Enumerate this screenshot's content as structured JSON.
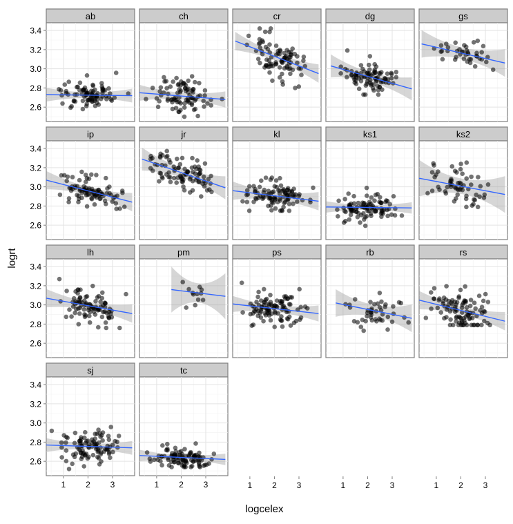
{
  "chart_data": {
    "type": "scatter",
    "title": "",
    "xlabel": "logcelex",
    "ylabel": "logrt",
    "xlim": [
      0.3,
      3.9
    ],
    "ylim": [
      2.45,
      3.48
    ],
    "x_ticks": [
      1,
      2,
      3
    ],
    "y_ticks": [
      2.6,
      2.8,
      3.0,
      3.2,
      3.4
    ],
    "x_tick_labels": [
      "1",
      "2",
      "3"
    ],
    "y_tick_labels": [
      "2.6",
      "2.8",
      "3.0",
      "3.2",
      "3.4"
    ],
    "grid": true,
    "legend": "none",
    "layout": {
      "ncol": 5,
      "nrow": 4
    },
    "panels": [
      {
        "name": "ab",
        "n": 90,
        "xr": [
          0.3,
          3.8
        ],
        "y0": 2.73,
        "y1": 2.72,
        "sd": 0.08,
        "yr": [
          2.58,
          3.02
        ],
        "fit": [
          0.3,
          3.8
        ],
        "band": 0.03
      },
      {
        "name": "ch",
        "n": 90,
        "xr": [
          0.3,
          3.8
        ],
        "y0": 2.75,
        "y1": 2.68,
        "sd": 0.09,
        "yr": [
          2.5,
          3.0
        ],
        "fit": [
          0.3,
          3.8
        ],
        "band": 0.035
      },
      {
        "name": "cr",
        "n": 90,
        "xr": [
          0.4,
          3.8
        ],
        "y0": 3.29,
        "y1": 2.95,
        "sd": 0.11,
        "yr": [
          2.8,
          3.42
        ],
        "fit": [
          0.4,
          3.8
        ],
        "band": 0.04
      },
      {
        "name": "dg",
        "n": 90,
        "xr": [
          0.5,
          3.8
        ],
        "y0": 3.03,
        "y1": 2.79,
        "sd": 0.1,
        "yr": [
          2.73,
          3.35
        ],
        "fit": [
          0.5,
          3.8
        ],
        "band": 0.05
      },
      {
        "name": "gs",
        "n": 40,
        "xr": [
          0.4,
          3.8
        ],
        "y0": 3.26,
        "y1": 3.06,
        "sd": 0.07,
        "yr": [
          2.97,
          3.4
        ],
        "fit": [
          0.4,
          3.8
        ],
        "band": 0.06
      },
      {
        "name": "ip",
        "n": 90,
        "xr": [
          0.3,
          3.8
        ],
        "y0": 3.07,
        "y1": 2.84,
        "sd": 0.08,
        "yr": [
          2.77,
          3.27
        ],
        "fit": [
          0.3,
          3.8
        ],
        "band": 0.04
      },
      {
        "name": "jr",
        "n": 90,
        "xr": [
          0.4,
          3.8
        ],
        "y0": 3.29,
        "y1": 2.99,
        "sd": 0.09,
        "yr": [
          2.9,
          3.43
        ],
        "fit": [
          0.4,
          3.8
        ],
        "band": 0.05
      },
      {
        "name": "kl",
        "n": 100,
        "xr": [
          0.3,
          3.8
        ],
        "y0": 2.96,
        "y1": 2.85,
        "sd": 0.09,
        "yr": [
          2.75,
          3.31
        ],
        "fit": [
          0.3,
          3.8
        ],
        "band": 0.04
      },
      {
        "name": "ks1",
        "n": 100,
        "xr": [
          0.3,
          3.8
        ],
        "y0": 2.79,
        "y1": 2.78,
        "sd": 0.07,
        "yr": [
          2.54,
          3.04
        ],
        "fit": [
          0.3,
          3.8
        ],
        "band": 0.025
      },
      {
        "name": "ks2",
        "n": 60,
        "xr": [
          0.3,
          3.8
        ],
        "y0": 3.09,
        "y1": 2.92,
        "sd": 0.14,
        "yr": [
          2.79,
          3.42
        ],
        "fit": [
          0.3,
          3.8
        ],
        "band": 0.08
      },
      {
        "name": "lh",
        "n": 90,
        "xr": [
          0.3,
          3.8
        ],
        "y0": 3.07,
        "y1": 2.91,
        "sd": 0.09,
        "yr": [
          2.76,
          3.27
        ],
        "fit": [
          0.3,
          3.8
        ],
        "band": 0.04
      },
      {
        "name": "pm",
        "n": 12,
        "xr": [
          1.6,
          3.8
        ],
        "y0": 3.16,
        "y1": 3.09,
        "sd": 0.09,
        "yr": [
          2.97,
          3.37
        ],
        "fit": [
          1.6,
          3.8
        ],
        "band": 0.1
      },
      {
        "name": "ps",
        "n": 100,
        "xr": [
          0.3,
          3.8
        ],
        "y0": 3.01,
        "y1": 2.91,
        "sd": 0.09,
        "yr": [
          2.75,
          3.34
        ],
        "fit": [
          0.3,
          3.8
        ],
        "band": 0.035
      },
      {
        "name": "rb",
        "n": 45,
        "xr": [
          0.7,
          3.8
        ],
        "y0": 3.02,
        "y1": 2.86,
        "sd": 0.09,
        "yr": [
          2.72,
          3.26
        ],
        "fit": [
          0.7,
          3.8
        ],
        "band": 0.06
      },
      {
        "name": "rs",
        "n": 100,
        "xr": [
          0.3,
          3.8
        ],
        "y0": 3.05,
        "y1": 2.83,
        "sd": 0.1,
        "yr": [
          2.79,
          3.4
        ],
        "fit": [
          0.3,
          3.8
        ],
        "band": 0.04
      },
      {
        "name": "sj",
        "n": 100,
        "xr": [
          0.3,
          3.8
        ],
        "y0": 2.77,
        "y1": 2.74,
        "sd": 0.08,
        "yr": [
          2.52,
          2.98
        ],
        "fit": [
          0.3,
          3.8
        ],
        "band": 0.03
      },
      {
        "name": "tc",
        "n": 100,
        "xr": [
          0.3,
          3.8
        ],
        "y0": 2.66,
        "y1": 2.62,
        "sd": 0.06,
        "yr": [
          2.54,
          3.01
        ],
        "fit": [
          0.3,
          3.8
        ],
        "band": 0.025
      }
    ]
  }
}
